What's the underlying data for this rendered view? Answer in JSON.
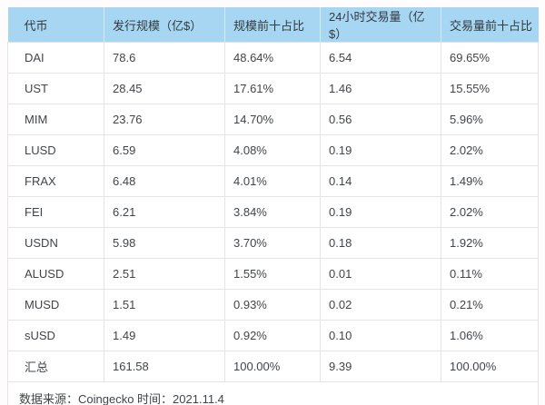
{
  "chart_data": {
    "type": "table",
    "columns": [
      "代币",
      "发行规模（亿$）",
      "规模前十占比",
      "24小时交易量（亿$）",
      "交易量前十占比"
    ],
    "rows": [
      [
        "DAI",
        "78.6",
        "48.64%",
        "6.54",
        "69.65%"
      ],
      [
        "UST",
        "28.45",
        "17.61%",
        "1.46",
        "15.55%"
      ],
      [
        "MIM",
        "23.76",
        "14.70%",
        "0.56",
        "5.96%"
      ],
      [
        "LUSD",
        "6.59",
        "4.08%",
        "0.19",
        "2.02%"
      ],
      [
        "FRAX",
        "6.48",
        "4.01%",
        "0.14",
        "1.49%"
      ],
      [
        "FEI",
        "6.21",
        "3.84%",
        "0.19",
        "2.02%"
      ],
      [
        "USDN",
        "5.98",
        "3.70%",
        "0.18",
        "1.92%"
      ],
      [
        "ALUSD",
        "2.51",
        "1.55%",
        "0.01",
        "0.11%"
      ],
      [
        "MUSD",
        "1.51",
        "0.93%",
        "0.02",
        "0.21%"
      ],
      [
        "sUSD",
        "1.49",
        "0.92%",
        "0.10",
        "1.06%"
      ],
      [
        "汇总",
        "161.58",
        "100.00%",
        "9.39",
        "100.00%"
      ]
    ],
    "footer_note": "数据来源：Coingecko 时间：2021.11.4",
    "layout": {
      "legend": "none",
      "grid": "on",
      "header_position": "top"
    }
  },
  "colors": {
    "header_bg": "#a7d6f2",
    "header_divider": "#d3ecfb",
    "cell_border": "#e4e4e4",
    "text": "#414549",
    "page_bg": "#fefcfc"
  }
}
